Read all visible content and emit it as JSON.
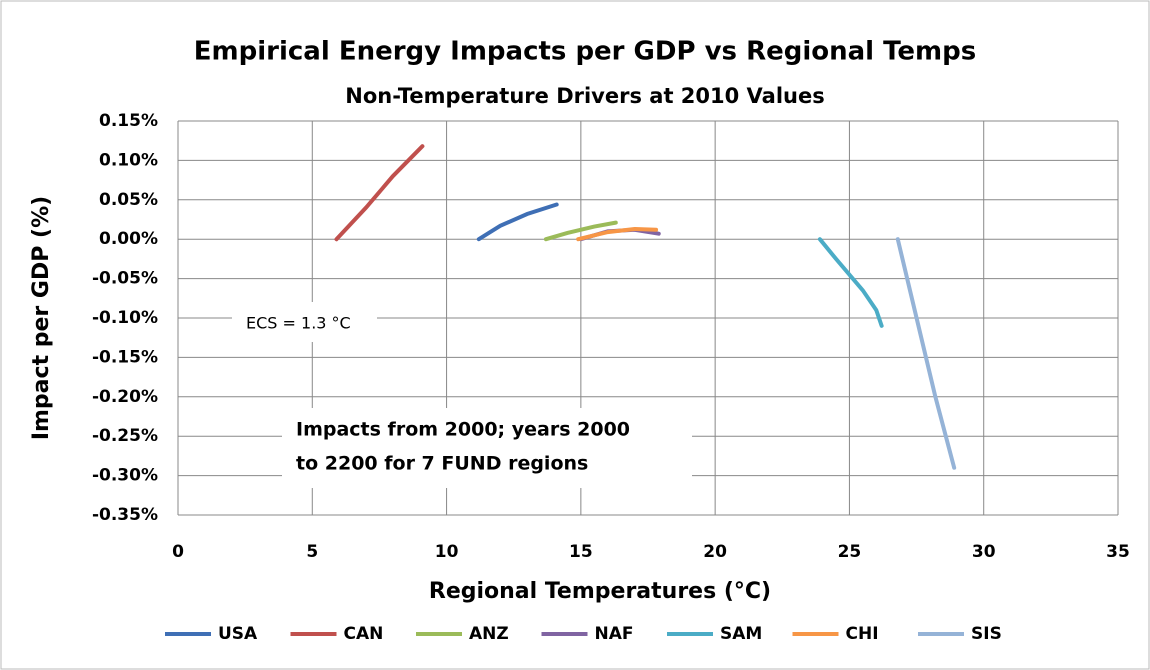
{
  "chart_data": {
    "type": "line",
    "title": "Empirical Energy Impacts per GDP vs Regional Temps",
    "subtitle": "Non-Temperature Drivers at 2010 Values",
    "x_label": "Regional Temperatures (°C)",
    "y_label": "Impact per GDP (%)",
    "annotations": [
      [
        "ECS = 1.3 °C"
      ],
      [
        "Impacts from 2000; years 2000",
        "to 2200 for 7 FUND regions"
      ]
    ],
    "xlim": [
      0,
      35
    ],
    "xticks": [
      0,
      5,
      10,
      15,
      20,
      25,
      30,
      35
    ],
    "ylim": [
      -0.35,
      0.15
    ],
    "yticks": [
      {
        "value": 0.15,
        "label": "0.15%"
      },
      {
        "value": 0.1,
        "label": "0.10%"
      },
      {
        "value": 0.05,
        "label": "0.05%"
      },
      {
        "value": 0,
        "label": "0.00%"
      },
      {
        "value": -0.05,
        "label": "-0.05%"
      },
      {
        "value": -0.1,
        "label": "-0.10%"
      },
      {
        "value": -0.15,
        "label": "-0.15%"
      },
      {
        "value": -0.2,
        "label": "-0.20%"
      },
      {
        "value": -0.25,
        "label": "-0.25%"
      },
      {
        "value": -0.3,
        "label": "-0.30%"
      },
      {
        "value": -0.35,
        "label": "-0.35%"
      }
    ],
    "grid": true,
    "legend": "bottom",
    "series": [
      {
        "name": "USA",
        "color": "#3f6fb5",
        "x": [
          11.2,
          12,
          13,
          14.1
        ],
        "values": [
          0,
          0.017,
          0.032,
          0.044
        ]
      },
      {
        "name": "CAN",
        "color": "#c0504d",
        "x": [
          5.9,
          7,
          8,
          9.1
        ],
        "values": [
          0,
          0.04,
          0.08,
          0.118
        ]
      },
      {
        "name": "ANZ",
        "color": "#9bbb59",
        "x": [
          13.7,
          14.5,
          15.5,
          16.3
        ],
        "values": [
          0,
          0.008,
          0.016,
          0.021
        ]
      },
      {
        "name": "NAF",
        "color": "#8064a2",
        "x": [
          15,
          16,
          17,
          17.9
        ],
        "values": [
          0,
          0.01,
          0.012,
          0.007
        ]
      },
      {
        "name": "SAM",
        "color": "#4bacc6",
        "x": [
          23.9,
          24.5,
          25.5,
          26,
          26.2
        ],
        "values": [
          0,
          -0.025,
          -0.065,
          -0.09,
          -0.11
        ]
      },
      {
        "name": "CHI",
        "color": "#f79646",
        "x": [
          14.9,
          16,
          17,
          17.8
        ],
        "values": [
          0,
          0.009,
          0.013,
          0.012
        ]
      },
      {
        "name": "SIS",
        "color": "#95b3d7",
        "x": [
          26.8,
          27.5,
          28.2,
          28.9
        ],
        "values": [
          0,
          -0.1,
          -0.2,
          -0.29
        ]
      }
    ]
  }
}
